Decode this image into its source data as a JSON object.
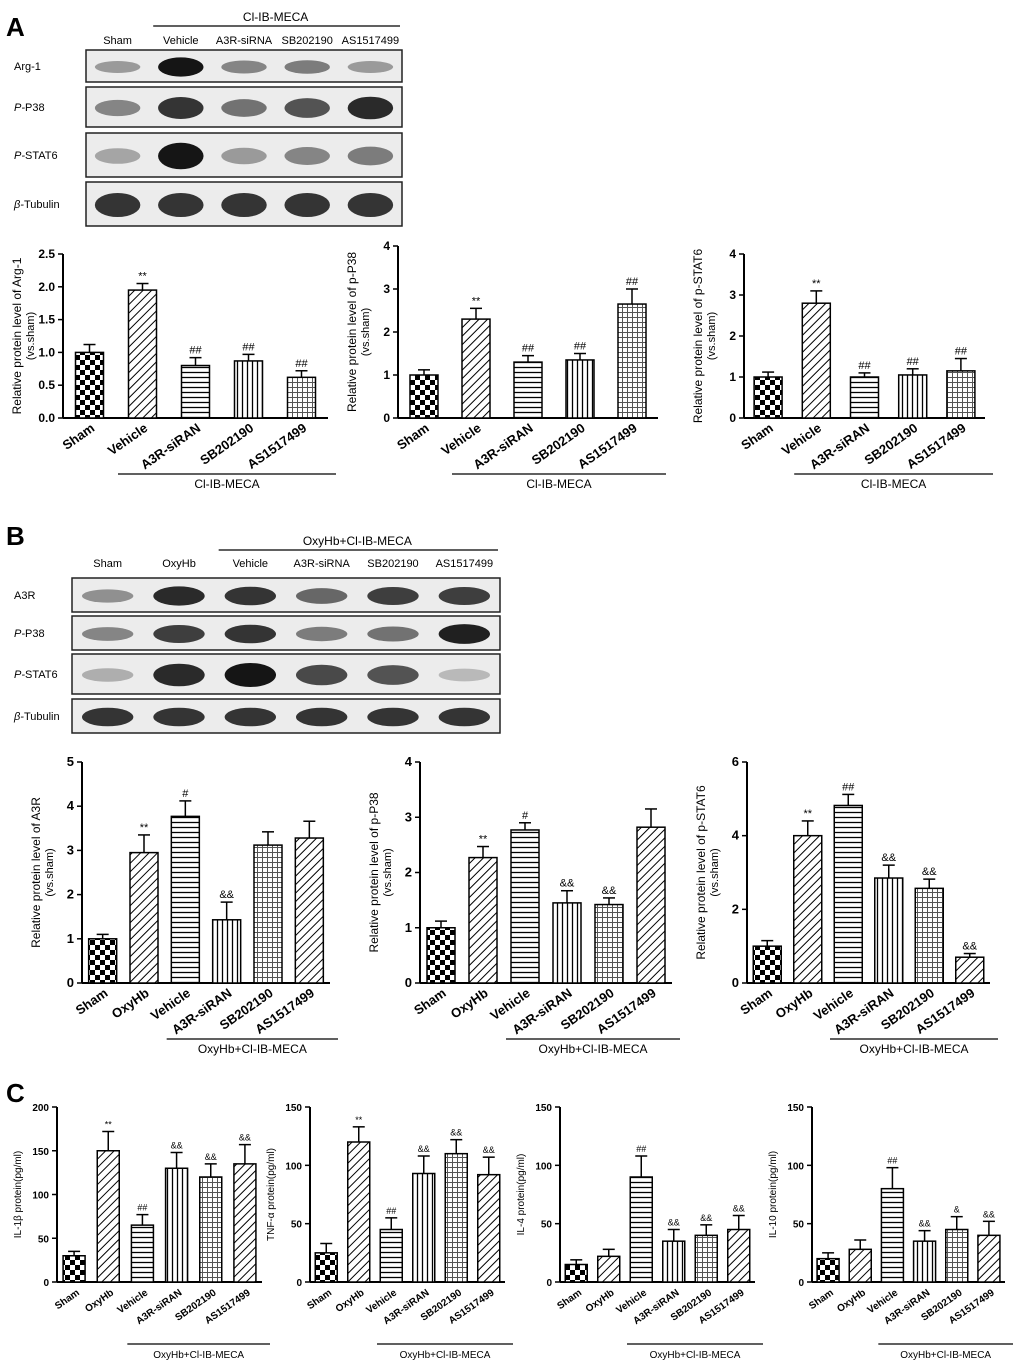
{
  "panels": {
    "A": {
      "letter": "A",
      "blot": {
        "group_label": "Cl-IB-MECA",
        "lanes": [
          "Sham",
          "Vehicle",
          "A3R-siRNA",
          "SB202190",
          "AS1517499"
        ],
        "rows": [
          {
            "prefix": "",
            "name": "Arg-1",
            "intensity": [
              0.35,
              1.0,
              0.45,
              0.5,
              0.35
            ]
          },
          {
            "prefix": "P-",
            "name": "P38",
            "intensity": [
              0.45,
              0.85,
              0.55,
              0.7,
              0.9
            ]
          },
          {
            "prefix": "P-",
            "name": "STAT6",
            "intensity": [
              0.3,
              1.0,
              0.35,
              0.45,
              0.5
            ]
          },
          {
            "prefix": "β-",
            "name": "Tubulin",
            "intensity": [
              0.85,
              0.85,
              0.85,
              0.85,
              0.85
            ]
          }
        ]
      }
    },
    "B": {
      "letter": "B",
      "blot": {
        "group_label": "OxyHb+Cl-IB-MECA",
        "lanes": [
          "Sham",
          "OxyHb",
          "Vehicle",
          "A3R-siRNA",
          "SB202190",
          "AS1517499"
        ],
        "rows": [
          {
            "prefix": "",
            "name": "A3R",
            "intensity": [
              0.4,
              0.9,
              0.85,
              0.6,
              0.8,
              0.8
            ]
          },
          {
            "prefix": "P-",
            "name": "P38",
            "intensity": [
              0.45,
              0.8,
              0.85,
              0.5,
              0.55,
              0.95
            ]
          },
          {
            "prefix": "P-",
            "name": "STAT6",
            "intensity": [
              0.25,
              0.9,
              1.0,
              0.75,
              0.7,
              0.2
            ]
          },
          {
            "prefix": "β-",
            "name": "Tubulin",
            "intensity": [
              0.85,
              0.85,
              0.85,
              0.85,
              0.85,
              0.85
            ]
          }
        ]
      }
    },
    "C": {
      "letter": "C"
    }
  },
  "patterns": {
    "Sham": "checker",
    "Vehicle": "diag",
    "A3R-siRNA": "hlines",
    "SB202190": "vlines",
    "AS1517499": "grid",
    "OxyHb": "diag"
  },
  "chart_data": [
    {
      "id": "A1",
      "type": "bar",
      "categories": [
        "Sham",
        "Vehicle",
        "A3R-siRAN",
        "SB202190",
        "AS1517499"
      ],
      "values": [
        1.0,
        1.95,
        0.8,
        0.87,
        0.62
      ],
      "errors": [
        0.12,
        0.1,
        0.12,
        0.1,
        0.1
      ],
      "annotations": [
        "",
        "**",
        "##",
        "##",
        "##"
      ],
      "ylim": [
        0,
        2.5
      ],
      "yticks": [
        0,
        0.5,
        1.0,
        1.5,
        2.0,
        2.5
      ],
      "ylabel": "Relative protein level of Arg-1",
      "ylabel2": "(vs.sham)",
      "group_label": "Cl-IB-MECA",
      "group_start": 1,
      "patterns": [
        "checker",
        "diag",
        "hlines",
        "vlines",
        "grid"
      ]
    },
    {
      "id": "A2",
      "type": "bar",
      "categories": [
        "Sham",
        "Vehicle",
        "A3R-siRAN",
        "SB202190",
        "AS1517499"
      ],
      "values": [
        1.0,
        2.3,
        1.3,
        1.35,
        2.65
      ],
      "errors": [
        0.12,
        0.25,
        0.15,
        0.15,
        0.35
      ],
      "annotations": [
        "",
        "**",
        "##",
        "##",
        "##"
      ],
      "ylim": [
        0,
        4
      ],
      "yticks": [
        0,
        1,
        2,
        3,
        4
      ],
      "ylabel": "Relative protein level of p-P38",
      "ylabel2": "(vs.sham)",
      "group_label": "Cl-IB-MECA",
      "group_start": 1,
      "patterns": [
        "checker",
        "diag",
        "hlines",
        "vlines",
        "grid"
      ]
    },
    {
      "id": "A3",
      "type": "bar",
      "categories": [
        "Sham",
        "Vehicle",
        "A3R-siRAN",
        "SB202190",
        "AS1517499"
      ],
      "values": [
        1.0,
        2.8,
        1.0,
        1.05,
        1.15
      ],
      "errors": [
        0.12,
        0.3,
        0.1,
        0.15,
        0.3
      ],
      "annotations": [
        "",
        "**",
        "##",
        "##",
        "##"
      ],
      "ylim": [
        0,
        4
      ],
      "yticks": [
        0,
        1,
        2,
        3,
        4
      ],
      "ylabel": "Relative protein level of p-STAT6",
      "ylabel2": "(vs.sham)",
      "group_label": "Cl-IB-MECA",
      "group_start": 1,
      "patterns": [
        "checker",
        "diag",
        "hlines",
        "vlines",
        "grid"
      ]
    },
    {
      "id": "B1",
      "type": "bar",
      "categories": [
        "Sham",
        "OxyHb",
        "Vehicle",
        "A3R-siRAN",
        "SB202190",
        "AS1517499"
      ],
      "values": [
        1.0,
        2.95,
        3.77,
        1.43,
        3.12,
        3.28
      ],
      "errors": [
        0.1,
        0.4,
        0.35,
        0.4,
        0.3,
        0.38
      ],
      "annotations": [
        "",
        "**",
        "#",
        "&&",
        "",
        ""
      ],
      "ylim": [
        0,
        5
      ],
      "yticks": [
        0,
        1,
        2,
        3,
        4,
        5
      ],
      "ylabel": "Relative protein level of A3R",
      "ylabel2": "(vs.sham)",
      "group_label": "OxyHb+Cl-IB-MECA",
      "group_start": 2,
      "patterns": [
        "checker",
        "diag",
        "hlines",
        "vlines",
        "grid",
        "diag"
      ]
    },
    {
      "id": "B2",
      "type": "bar",
      "categories": [
        "Sham",
        "OxyHb",
        "Vehicle",
        "A3R-siRAN",
        "SB202190",
        "AS1517499"
      ],
      "values": [
        1.0,
        2.27,
        2.77,
        1.45,
        1.42,
        2.82
      ],
      "errors": [
        0.12,
        0.2,
        0.13,
        0.22,
        0.12,
        0.33
      ],
      "annotations": [
        "",
        "**",
        "#",
        "&&",
        "&&",
        ""
      ],
      "ylim": [
        0,
        4
      ],
      "yticks": [
        0,
        1,
        2,
        3,
        4
      ],
      "ylabel": "Relative protein level of p-P38",
      "ylabel2": "(vs.sham)",
      "group_label": "OxyHb+Cl-IB-MECA",
      "group_start": 2,
      "patterns": [
        "checker",
        "diag",
        "hlines",
        "vlines",
        "grid",
        "diag"
      ]
    },
    {
      "id": "B3",
      "type": "bar",
      "categories": [
        "Sham",
        "OxyHb",
        "Vehicle",
        "A3R-siRAN",
        "SB202190",
        "AS1517499"
      ],
      "values": [
        1.0,
        4.0,
        4.82,
        2.85,
        2.57,
        0.7
      ],
      "errors": [
        0.15,
        0.4,
        0.3,
        0.35,
        0.25,
        0.1
      ],
      "annotations": [
        "",
        "**",
        "##",
        "&&",
        "&&",
        "&&"
      ],
      "ylim": [
        0,
        6
      ],
      "yticks": [
        0,
        2,
        4,
        6
      ],
      "ylabel": "Relative protein level of p-STAT6",
      "ylabel2": "(vs.sham)",
      "group_label": "OxyHb+Cl-IB-MECA",
      "group_start": 2,
      "patterns": [
        "checker",
        "diag",
        "hlines",
        "vlines",
        "grid",
        "diag"
      ]
    },
    {
      "id": "C1",
      "type": "bar",
      "categories": [
        "Sham",
        "OxyHb",
        "Vehicle",
        "A3R-siRAN",
        "SB202190",
        "AS1517499"
      ],
      "values": [
        30,
        150,
        65,
        130,
        120,
        135
      ],
      "errors": [
        5,
        22,
        12,
        18,
        15,
        22
      ],
      "annotations": [
        "",
        "**",
        "##",
        "&&",
        "&&",
        "&&"
      ],
      "ylim": [
        0,
        200
      ],
      "yticks": [
        0,
        50,
        100,
        150,
        200
      ],
      "ylabel": "IL-1β protein(pg/ml)",
      "ylabel2": "",
      "group_label": "OxyHb+Cl-IB-MECA",
      "group_start": 2,
      "patterns": [
        "checker",
        "diag",
        "hlines",
        "vlines",
        "grid",
        "diag"
      ]
    },
    {
      "id": "C2",
      "type": "bar",
      "categories": [
        "Sham",
        "OxyHb",
        "Vehicle",
        "A3R-siRAN",
        "SB202190",
        "AS1517499"
      ],
      "values": [
        25,
        120,
        45,
        93,
        110,
        92
      ],
      "errors": [
        8,
        13,
        10,
        15,
        12,
        15
      ],
      "annotations": [
        "",
        "**",
        "##",
        "&&",
        "&&",
        "&&"
      ],
      "ylim": [
        0,
        150
      ],
      "yticks": [
        0,
        50,
        100,
        150
      ],
      "ylabel": "TNF-α protein(pg/ml)",
      "ylabel2": "",
      "group_label": "OxyHb+Cl-IB-MECA",
      "group_start": 2,
      "patterns": [
        "checker",
        "diag",
        "hlines",
        "vlines",
        "grid",
        "diag"
      ]
    },
    {
      "id": "C3",
      "type": "bar",
      "categories": [
        "Sham",
        "OxyHb",
        "Vehicle",
        "A3R-siRAN",
        "SB202190",
        "AS1517499"
      ],
      "values": [
        15,
        22,
        90,
        35,
        40,
        45
      ],
      "errors": [
        4,
        6,
        18,
        10,
        9,
        12
      ],
      "annotations": [
        "",
        "",
        "##",
        "&&",
        "&&",
        "&&"
      ],
      "ylim": [
        0,
        150
      ],
      "yticks": [
        0,
        50,
        100,
        150
      ],
      "ylabel": "IL-4 protein(pg/ml)",
      "ylabel2": "",
      "group_label": "OxyHb+Cl-IB-MECA",
      "group_start": 2,
      "patterns": [
        "checker",
        "diag",
        "hlines",
        "vlines",
        "grid",
        "diag"
      ]
    },
    {
      "id": "C4",
      "type": "bar",
      "categories": [
        "Sham",
        "OxyHb",
        "Vehicle",
        "A3R-siRAN",
        "SB202190",
        "AS1517499"
      ],
      "values": [
        20,
        28,
        80,
        35,
        45,
        40
      ],
      "errors": [
        5,
        8,
        18,
        9,
        11,
        12
      ],
      "annotations": [
        "",
        "",
        "##",
        "&&",
        "&",
        "&&"
      ],
      "ylim": [
        0,
        150
      ],
      "yticks": [
        0,
        50,
        100,
        150
      ],
      "ylabel": "IL-10 protein(pg/ml)",
      "ylabel2": "",
      "group_label": "OxyHb+Cl-IB-MECA",
      "group_start": 2,
      "patterns": [
        "checker",
        "diag",
        "hlines",
        "vlines",
        "grid",
        "diag"
      ]
    }
  ]
}
